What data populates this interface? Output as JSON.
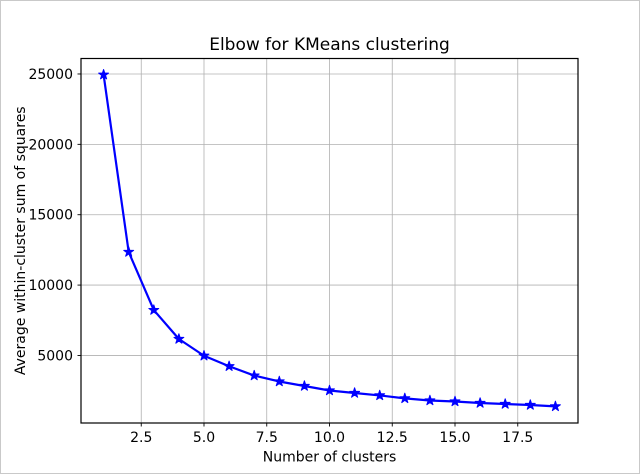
{
  "figure": {
    "background_color": "#ffffff",
    "border_color": "#c9c9c9"
  },
  "chart_data": {
    "type": "line",
    "title": "Elbow for KMeans clustering",
    "xlabel": "Number of clusters",
    "ylabel": "Average within-cluster sum of squares",
    "x": [
      1,
      2,
      3,
      4,
      5,
      6,
      7,
      8,
      9,
      10,
      11,
      12,
      13,
      14,
      15,
      16,
      17,
      18,
      19
    ],
    "y": [
      24950,
      12350,
      8225,
      6170,
      4980,
      4230,
      3570,
      3150,
      2830,
      2510,
      2330,
      2160,
      1950,
      1800,
      1730,
      1620,
      1550,
      1480,
      1380
    ],
    "xlim": [
      0.1,
      19.9
    ],
    "ylim": [
      200,
      26100
    ],
    "x_tick_values": [
      2.5,
      5.0,
      7.5,
      10.0,
      12.5,
      15.0,
      17.5
    ],
    "x_tick_labels": [
      "2.5",
      "5.0",
      "7.5",
      "10.0",
      "12.5",
      "15.0",
      "17.5"
    ],
    "y_tick_values": [
      5000,
      10000,
      15000,
      20000,
      25000
    ],
    "y_tick_labels": [
      "5000",
      "10000",
      "15000",
      "20000",
      "25000"
    ],
    "grid": true,
    "legend_position": "none",
    "line_color": "#0000ff",
    "marker": "star",
    "marker_color": "#0000ff",
    "grid_color": "#b0b0b0",
    "spine_color": "#000000",
    "tick_color": "#000000",
    "text_color": "#000000"
  }
}
